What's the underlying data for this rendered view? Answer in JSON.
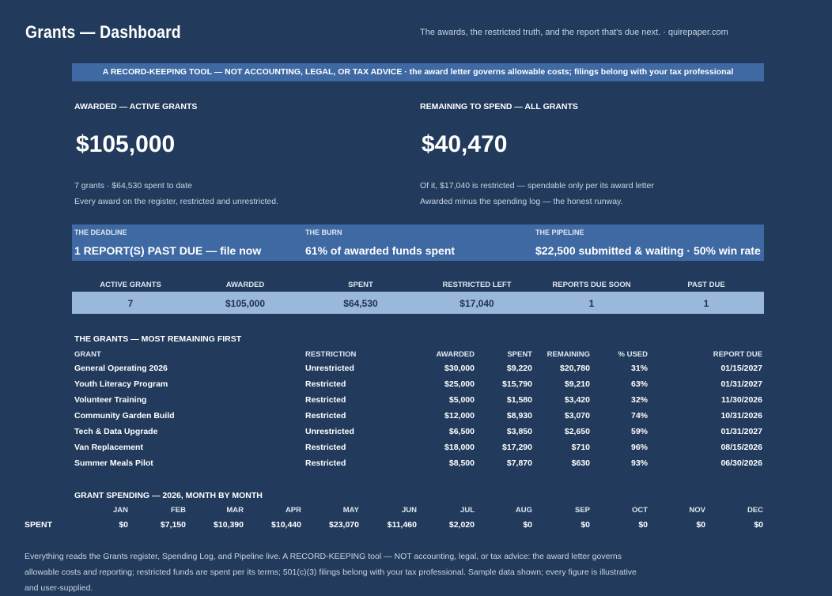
{
  "header": {
    "title": "Grants — Dashboard",
    "tagline": "The awards, the restricted truth, and the report that's due next.  ·  quirepaper.com"
  },
  "banner": "A RECORD-KEEPING TOOL — NOT ACCOUNTING, LEGAL, OR TAX ADVICE  ·  the award letter governs allowable costs; filings belong with your tax professional",
  "kpis": {
    "awarded": {
      "label": "AWARDED — ACTIVE GRANTS",
      "value": "$105,000",
      "note1": "7 grants  ·  $64,530 spent to date",
      "note2": "Every award on the register, restricted and unrestricted."
    },
    "remaining": {
      "label": "REMAINING TO SPEND — ALL GRANTS",
      "value": "$40,470",
      "note1": "Of it, $17,040 is restricted — spendable only per its award letter",
      "note2": "Awarded minus the spending log — the honest runway."
    }
  },
  "band": {
    "deadline": {
      "label": "THE DEADLINE",
      "value": "1 REPORT(S) PAST DUE — file now"
    },
    "burn": {
      "label": "THE BURN",
      "value": "61% of awarded funds spent"
    },
    "pipeline": {
      "label": "THE PIPELINE",
      "value": "$22,500 submitted & waiting  ·  50% win rate"
    }
  },
  "summary": {
    "headers": [
      "ACTIVE GRANTS",
      "AWARDED",
      "SPENT",
      "RESTRICTED LEFT",
      "REPORTS DUE SOON",
      "PAST DUE"
    ],
    "values": [
      "7",
      "$105,000",
      "$64,530",
      "$17,040",
      "1",
      "1"
    ]
  },
  "grants": {
    "title": "THE GRANTS — MOST REMAINING FIRST",
    "headers": {
      "grant": "GRANT",
      "restriction": "RESTRICTION",
      "awarded": "AWARDED",
      "spent": "SPENT",
      "remaining": "REMAINING",
      "pct": "% USED",
      "due": "REPORT DUE"
    },
    "rows": [
      {
        "grant": "General Operating 2026",
        "restriction": "Unrestricted",
        "awarded": "$30,000",
        "spent": "$9,220",
        "remaining": "$20,780",
        "pct": "31%",
        "due": "01/15/2027"
      },
      {
        "grant": "Youth Literacy Program",
        "restriction": "Restricted",
        "awarded": "$25,000",
        "spent": "$15,790",
        "remaining": "$9,210",
        "pct": "63%",
        "due": "01/31/2027"
      },
      {
        "grant": "Volunteer Training",
        "restriction": "Restricted",
        "awarded": "$5,000",
        "spent": "$1,580",
        "remaining": "$3,420",
        "pct": "32%",
        "due": "11/30/2026"
      },
      {
        "grant": "Community Garden Build",
        "restriction": "Restricted",
        "awarded": "$12,000",
        "spent": "$8,930",
        "remaining": "$3,070",
        "pct": "74%",
        "due": "10/31/2026"
      },
      {
        "grant": "Tech & Data Upgrade",
        "restriction": "Unrestricted",
        "awarded": "$6,500",
        "spent": "$3,850",
        "remaining": "$2,650",
        "pct": "59%",
        "due": "01/31/2027"
      },
      {
        "grant": "Van Replacement",
        "restriction": "Restricted",
        "awarded": "$18,000",
        "spent": "$17,290",
        "remaining": "$710",
        "pct": "96%",
        "due": "08/15/2026"
      },
      {
        "grant": "Summer Meals Pilot",
        "restriction": "Restricted",
        "awarded": "$8,500",
        "spent": "$7,870",
        "remaining": "$630",
        "pct": "93%",
        "due": "06/30/2026"
      }
    ]
  },
  "monthly": {
    "title": "GRANT SPENDING — 2026, MONTH BY MONTH",
    "row_label": "SPENT",
    "months": [
      "JAN",
      "FEB",
      "MAR",
      "APR",
      "MAY",
      "JUN",
      "JUL",
      "AUG",
      "SEP",
      "OCT",
      "NOV",
      "DEC"
    ],
    "values": [
      "$0",
      "$7,150",
      "$10,390",
      "$10,440",
      "$23,070",
      "$11,460",
      "$2,020",
      "$0",
      "$0",
      "$0",
      "$0",
      "$0"
    ]
  },
  "footer": "Everything reads the Grants register, Spending Log, and Pipeline live. A RECORD-KEEPING tool — NOT accounting, legal, or tax advice: the award letter governs allowable costs and reporting; restricted funds are spent per its terms; 501(c)(3) filings belong with your tax professional. Sample data shown; every figure is illustrative and user-supplied."
}
